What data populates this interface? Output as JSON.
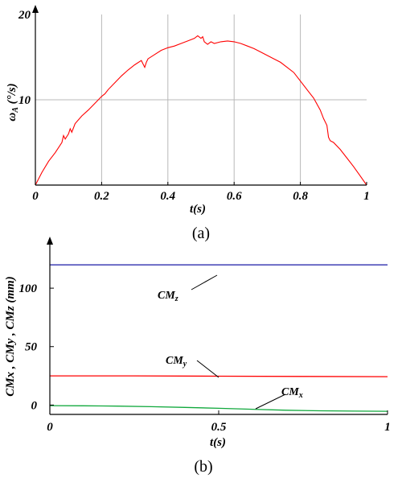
{
  "chart_data": [
    {
      "id": "a",
      "type": "line",
      "caption": "(a)",
      "xlabel": "t(s)",
      "ylabel_main": "ω",
      "ylabel_sub": "A",
      "ylabel_unit": " (°/s)",
      "xlim": [
        0,
        1
      ],
      "ylim": [
        0,
        20
      ],
      "xticks": [
        0,
        0.2,
        0.4,
        0.6,
        0.8,
        1
      ],
      "xtick_labels": [
        "0",
        "0.2",
        "0.4",
        "0.6",
        "0.8",
        "1"
      ],
      "yticks": [
        10,
        20
      ],
      "ytick_labels": [
        "10",
        "20"
      ],
      "grid": true,
      "series": [
        {
          "color": "#ff0000",
          "x": [
            0,
            0.02,
            0.04,
            0.06,
            0.08,
            0.085,
            0.09,
            0.1,
            0.105,
            0.11,
            0.12,
            0.14,
            0.16,
            0.18,
            0.2,
            0.21,
            0.22,
            0.24,
            0.26,
            0.28,
            0.3,
            0.32,
            0.33,
            0.335,
            0.34,
            0.36,
            0.38,
            0.4,
            0.42,
            0.44,
            0.46,
            0.48,
            0.49,
            0.5,
            0.505,
            0.51,
            0.52,
            0.53,
            0.54,
            0.56,
            0.58,
            0.6,
            0.62,
            0.64,
            0.66,
            0.68,
            0.7,
            0.72,
            0.74,
            0.76,
            0.78,
            0.8,
            0.82,
            0.84,
            0.86,
            0.87,
            0.88,
            0.885,
            0.89,
            0.9,
            0.92,
            0.94,
            0.96,
            0.98,
            1.0
          ],
          "y": [
            0,
            1.5,
            2.8,
            3.8,
            5.0,
            5.8,
            5.4,
            6.0,
            6.6,
            6.2,
            7.2,
            8.1,
            8.8,
            9.6,
            10.4,
            10.7,
            11.2,
            12.0,
            12.8,
            13.5,
            14.1,
            14.6,
            13.8,
            14.4,
            14.8,
            15.3,
            15.8,
            16.1,
            16.3,
            16.6,
            16.9,
            17.2,
            17.5,
            17.2,
            17.4,
            16.8,
            16.5,
            16.8,
            16.6,
            16.8,
            16.9,
            16.8,
            16.6,
            16.3,
            16.0,
            15.6,
            15.2,
            14.8,
            14.4,
            13.8,
            13.2,
            12.2,
            11.2,
            10.2,
            8.8,
            7.8,
            7.0,
            5.6,
            5.2,
            5.0,
            4.2,
            3.2,
            2.2,
            1.1,
            0
          ]
        }
      ]
    },
    {
      "id": "b",
      "type": "line",
      "caption": "(b)",
      "xlabel": "t(s)",
      "ylabel": "CMx , CMy , CMz (mm)",
      "xlim": [
        0,
        1
      ],
      "ylim": [
        -8,
        140
      ],
      "xticks": [
        0,
        0.5,
        1
      ],
      "xtick_labels": [
        "0",
        "0.5",
        "1"
      ],
      "yticks": [
        0,
        50,
        100
      ],
      "ytick_labels": [
        "0",
        "50",
        "100"
      ],
      "grid": false,
      "series": [
        {
          "name": "CMz",
          "label_main": "CM",
          "label_sub": "z",
          "color": "#1a1aa6",
          "x": [
            0,
            0.25,
            0.5,
            0.75,
            1.0
          ],
          "y": [
            120,
            120,
            120,
            120,
            120
          ]
        },
        {
          "name": "CMy",
          "label_main": "CM",
          "label_sub": "y",
          "color": "#ff0000",
          "x": [
            0,
            0.25,
            0.5,
            0.75,
            1.0
          ],
          "y": [
            25,
            25,
            24.7,
            24.5,
            24.3
          ]
        },
        {
          "name": "CMx",
          "label_main": "CM",
          "label_sub": "x",
          "color": "#10a83c",
          "x": [
            0,
            0.1,
            0.2,
            0.3,
            0.4,
            0.5,
            0.6,
            0.7,
            0.8,
            0.9,
            1.0
          ],
          "y": [
            -0.5,
            -0.6,
            -0.9,
            -1.4,
            -2.0,
            -2.8,
            -3.6,
            -4.4,
            -4.9,
            -5.2,
            -5.3
          ]
        }
      ]
    }
  ]
}
